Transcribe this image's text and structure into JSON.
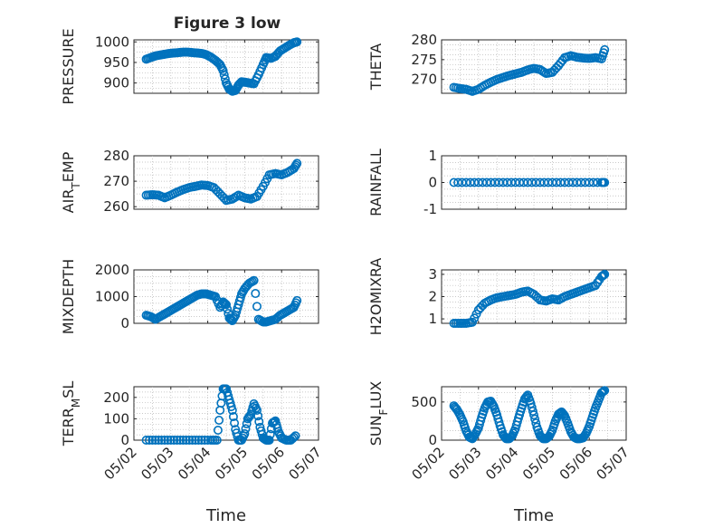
{
  "title": "Figure 3 low",
  "chart_data": [
    {
      "type": "scatter",
      "ylabel": "PRESSURE",
      "xlim": [
        "05/02",
        "05/07"
      ],
      "ylim": [
        875,
        1005
      ],
      "yticks": [
        900,
        950,
        1000
      ],
      "show_xticklabels": false,
      "x": [
        "05/02 08:00",
        "05/02 11:00",
        "05/02 14:00",
        "05/02 17:00",
        "05/02 20:00",
        "05/02 23:00",
        "05/03 02:00",
        "05/03 05:00",
        "05/03 08:00",
        "05/03 11:00",
        "05/03 14:00",
        "05/03 17:00",
        "05/03 20:00",
        "05/03 23:00",
        "05/04 02:00",
        "05/04 05:00",
        "05/04 08:00",
        "05/04 10:00",
        "05/04 12:00",
        "05/04 14:00",
        "05/04 16:00",
        "05/04 18:00",
        "05/04 20:00",
        "05/04 22:00",
        "05/05 00:00",
        "05/05 03:00",
        "05/05 06:00",
        "05/05 09:00",
        "05/05 12:00",
        "05/05 14:00",
        "05/05 17:00",
        "05/05 20:00",
        "05/05 23:00",
        "05/06 02:00",
        "05/06 05:00",
        "05/06 08:00",
        "05/06 10:00"
      ],
      "y": [
        958,
        962,
        966,
        968,
        970,
        972,
        973,
        974,
        975,
        975,
        974,
        973,
        972,
        969,
        963,
        955,
        945,
        930,
        900,
        885,
        880,
        882,
        895,
        903,
        902,
        900,
        898,
        920,
        945,
        962,
        960,
        965,
        978,
        985,
        992,
        998,
        1000
      ]
    },
    {
      "type": "scatter",
      "ylabel": "THETA",
      "xlim": [
        "05/02",
        "05/07"
      ],
      "ylim": [
        266.5,
        280
      ],
      "yticks": [
        270,
        275,
        280
      ],
      "show_xticklabels": false,
      "x": [
        "05/02 08:00",
        "05/02 12:00",
        "05/02 16:00",
        "05/02 20:00",
        "05/03 00:00",
        "05/03 04:00",
        "05/03 08:00",
        "05/03 12:00",
        "05/03 16:00",
        "05/03 20:00",
        "05/04 00:00",
        "05/04 04:00",
        "05/04 08:00",
        "05/04 12:00",
        "05/04 16:00",
        "05/04 20:00",
        "05/05 00:00",
        "05/05 04:00",
        "05/05 08:00",
        "05/05 12:00",
        "05/05 16:00",
        "05/05 20:00",
        "05/06 00:00",
        "05/06 04:00",
        "05/06 08:00",
        "05/06 10:00"
      ],
      "y": [
        268,
        267.7,
        267.5,
        267,
        267.5,
        268.5,
        269.3,
        270,
        270.5,
        271,
        271.4,
        271.8,
        272.4,
        272.8,
        272.5,
        271.5,
        271.8,
        273.5,
        275.5,
        276,
        275.6,
        275.4,
        275.3,
        275.5,
        275.2,
        277.5
      ]
    },
    {
      "type": "scatter",
      "ylabel": "AIR_TEMP",
      "xlim": [
        "05/02",
        "05/07"
      ],
      "ylim": [
        259,
        280
      ],
      "yticks": [
        260,
        270,
        280
      ],
      "show_xticklabels": false,
      "x": [
        "05/02 08:00",
        "05/02 12:00",
        "05/02 16:00",
        "05/02 20:00",
        "05/03 00:00",
        "05/03 04:00",
        "05/03 08:00",
        "05/03 12:00",
        "05/03 16:00",
        "05/03 20:00",
        "05/04 00:00",
        "05/04 04:00",
        "05/04 08:00",
        "05/04 12:00",
        "05/04 16:00",
        "05/04 20:00",
        "05/05 00:00",
        "05/05 04:00",
        "05/05 08:00",
        "05/05 12:00",
        "05/05 16:00",
        "05/05 20:00",
        "05/06 00:00",
        "05/06 04:00",
        "05/06 08:00",
        "05/06 10:00"
      ],
      "y": [
        264.5,
        264.7,
        264.5,
        263.5,
        264.5,
        265.7,
        266.7,
        267.5,
        268,
        268.5,
        268.3,
        267.5,
        265,
        262.5,
        263,
        264.5,
        263.5,
        263,
        264,
        268,
        272.5,
        273,
        272.5,
        273.5,
        275,
        277
      ]
    },
    {
      "type": "scatter",
      "ylabel": "RAINFALL",
      "xlim": [
        "05/02",
        "05/07"
      ],
      "ylim": [
        -1,
        1
      ],
      "yticks": [
        -1,
        0,
        1
      ],
      "show_xticklabels": false,
      "x": [
        "05/02 08:00",
        "05/02 16:00",
        "05/03 00:00",
        "05/03 08:00",
        "05/03 16:00",
        "05/04 00:00",
        "05/04 08:00",
        "05/04 16:00",
        "05/05 00:00",
        "05/05 08:00",
        "05/05 16:00",
        "05/06 00:00",
        "05/06 08:00",
        "05/06 10:00"
      ],
      "y": [
        0,
        0,
        0,
        0,
        0,
        0,
        0,
        0,
        0,
        0,
        0,
        0,
        0,
        0
      ]
    },
    {
      "type": "scatter",
      "ylabel": "MIXDEPTH",
      "xlim": [
        "05/02",
        "05/07"
      ],
      "ylim": [
        0,
        2000
      ],
      "yticks": [
        0,
        1000,
        2000
      ],
      "show_xticklabels": false,
      "x": [
        "05/02 08:00",
        "05/02 11:00",
        "05/02 14:00",
        "05/02 17:00",
        "05/02 20:00",
        "05/02 23:00",
        "05/03 02:00",
        "05/03 05:00",
        "05/03 08:00",
        "05/03 11:00",
        "05/03 14:00",
        "05/03 17:00",
        "05/03 20:00",
        "05/03 23:00",
        "05/04 02:00",
        "05/04 05:00",
        "05/04 08:00",
        "05/04 10:00",
        "05/04 12:00",
        "05/04 14:00",
        "05/04 16:00",
        "05/04 18:00",
        "05/04 20:00",
        "05/04 22:00",
        "05/05 00:00",
        "05/05 03:00",
        "05/05 06:00",
        "05/05 09:00",
        "05/05 12:00",
        "05/05 14:00",
        "05/05 17:00",
        "05/05 20:00",
        "05/05 23:00",
        "05/06 02:00",
        "05/06 05:00",
        "05/06 08:00",
        "05/06 10:00"
      ],
      "y": [
        300,
        250,
        150,
        250,
        350,
        450,
        550,
        650,
        750,
        850,
        950,
        1050,
        1100,
        1100,
        1050,
        1000,
        600,
        800,
        700,
        200,
        100,
        300,
        700,
        1100,
        1300,
        1500,
        1600,
        150,
        50,
        50,
        100,
        150,
        300,
        400,
        500,
        600,
        850
      ]
    },
    {
      "type": "scatter",
      "ylabel": "H2OMIXRA",
      "xlim": [
        "05/02",
        "05/07"
      ],
      "ylim": [
        0.8,
        3.2
      ],
      "yticks": [
        1,
        2,
        3
      ],
      "show_xticklabels": false,
      "x": [
        "05/02 08:00",
        "05/02 12:00",
        "05/02 16:00",
        "05/02 20:00",
        "05/03 00:00",
        "05/03 04:00",
        "05/03 08:00",
        "05/03 12:00",
        "05/03 16:00",
        "05/03 20:00",
        "05/04 00:00",
        "05/04 04:00",
        "05/04 08:00",
        "05/04 12:00",
        "05/04 16:00",
        "05/04 20:00",
        "05/05 00:00",
        "05/05 04:00",
        "05/05 08:00",
        "05/05 12:00",
        "05/05 16:00",
        "05/05 20:00",
        "05/06 00:00",
        "05/06 04:00",
        "05/06 08:00",
        "05/06 10:00"
      ],
      "y": [
        0.8,
        0.8,
        0.8,
        0.85,
        1.4,
        1.7,
        1.85,
        1.95,
        2.0,
        2.05,
        2.1,
        2.2,
        2.25,
        2.1,
        1.85,
        1.8,
        1.9,
        1.85,
        2.0,
        2.1,
        2.2,
        2.3,
        2.4,
        2.5,
        2.9,
        3.0
      ]
    },
    {
      "type": "scatter",
      "ylabel": "TERR_MSL",
      "xlim": [
        "05/02",
        "05/07"
      ],
      "ylim": [
        0,
        250
      ],
      "yticks": [
        0,
        100,
        200
      ],
      "show_xticklabels": true,
      "xticklabels": [
        "05/02",
        "05/03",
        "05/04",
        "05/05",
        "05/06",
        "05/07"
      ],
      "xlabel": "Time",
      "x": [
        "05/02 08:00",
        "05/02 14:00",
        "05/02 20:00",
        "05/03 02:00",
        "05/03 08:00",
        "05/03 14:00",
        "05/03 20:00",
        "05/04 02:00",
        "05/04 06:00",
        "05/04 08:00",
        "05/04 10:00",
        "05/04 12:00",
        "05/04 14:00",
        "05/04 16:00",
        "05/04 18:00",
        "05/04 20:00",
        "05/04 22:00",
        "05/05 00:00",
        "05/05 02:00",
        "05/05 04:00",
        "05/05 06:00",
        "05/05 08:00",
        "05/05 10:00",
        "05/05 12:00",
        "05/05 14:00",
        "05/05 16:00",
        "05/05 18:00",
        "05/05 20:00",
        "05/05 22:00",
        "05/06 00:00",
        "05/06 03:00",
        "05/06 06:00",
        "05/06 09:00"
      ],
      "y": [
        0,
        0,
        0,
        0,
        0,
        0,
        0,
        0,
        0,
        140,
        240,
        240,
        190,
        140,
        50,
        0,
        0,
        30,
        100,
        120,
        170,
        140,
        60,
        10,
        0,
        0,
        80,
        90,
        40,
        10,
        0,
        0,
        20
      ]
    },
    {
      "type": "scatter",
      "ylabel": "SUN_FLUX",
      "xlim": [
        "05/02",
        "05/07"
      ],
      "ylim": [
        0,
        700
      ],
      "yticks": [
        0,
        500
      ],
      "show_xticklabels": true,
      "xticklabels": [
        "05/02",
        "05/03",
        "05/04",
        "05/05",
        "05/06",
        "05/07"
      ],
      "xlabel": "Time",
      "x": [
        "05/02 08:00",
        "05/02 10:00",
        "05/02 12:00",
        "05/02 14:00",
        "05/02 16:00",
        "05/02 18:00",
        "05/02 20:00",
        "05/02 22:00",
        "05/03 00:00",
        "05/03 02:00",
        "05/03 04:00",
        "05/03 06:00",
        "05/03 08:00",
        "05/03 10:00",
        "05/03 12:00",
        "05/03 14:00",
        "05/03 16:00",
        "05/03 18:00",
        "05/03 20:00",
        "05/03 22:00",
        "05/04 00:00",
        "05/04 02:00",
        "05/04 04:00",
        "05/04 06:00",
        "05/04 08:00",
        "05/04 10:00",
        "05/04 12:00",
        "05/04 14:00",
        "05/04 16:00",
        "05/04 18:00",
        "05/04 20:00",
        "05/04 22:00",
        "05/05 00:00",
        "05/05 02:00",
        "05/05 04:00",
        "05/05 06:00",
        "05/05 08:00",
        "05/05 10:00",
        "05/05 12:00",
        "05/05 14:00",
        "05/05 16:00",
        "05/05 18:00",
        "05/05 20:00",
        "05/05 22:00",
        "05/06 00:00",
        "05/06 02:00",
        "05/06 04:00",
        "05/06 06:00",
        "05/06 08:00",
        "05/06 10:00"
      ],
      "y": [
        450,
        400,
        330,
        240,
        120,
        40,
        20,
        80,
        160,
        300,
        420,
        500,
        510,
        440,
        330,
        190,
        70,
        20,
        20,
        60,
        150,
        290,
        420,
        540,
        590,
        480,
        330,
        170,
        60,
        20,
        20,
        50,
        130,
        250,
        340,
        370,
        320,
        220,
        110,
        40,
        20,
        20,
        30,
        90,
        180,
        300,
        420,
        520,
        620,
        650
      ]
    }
  ]
}
